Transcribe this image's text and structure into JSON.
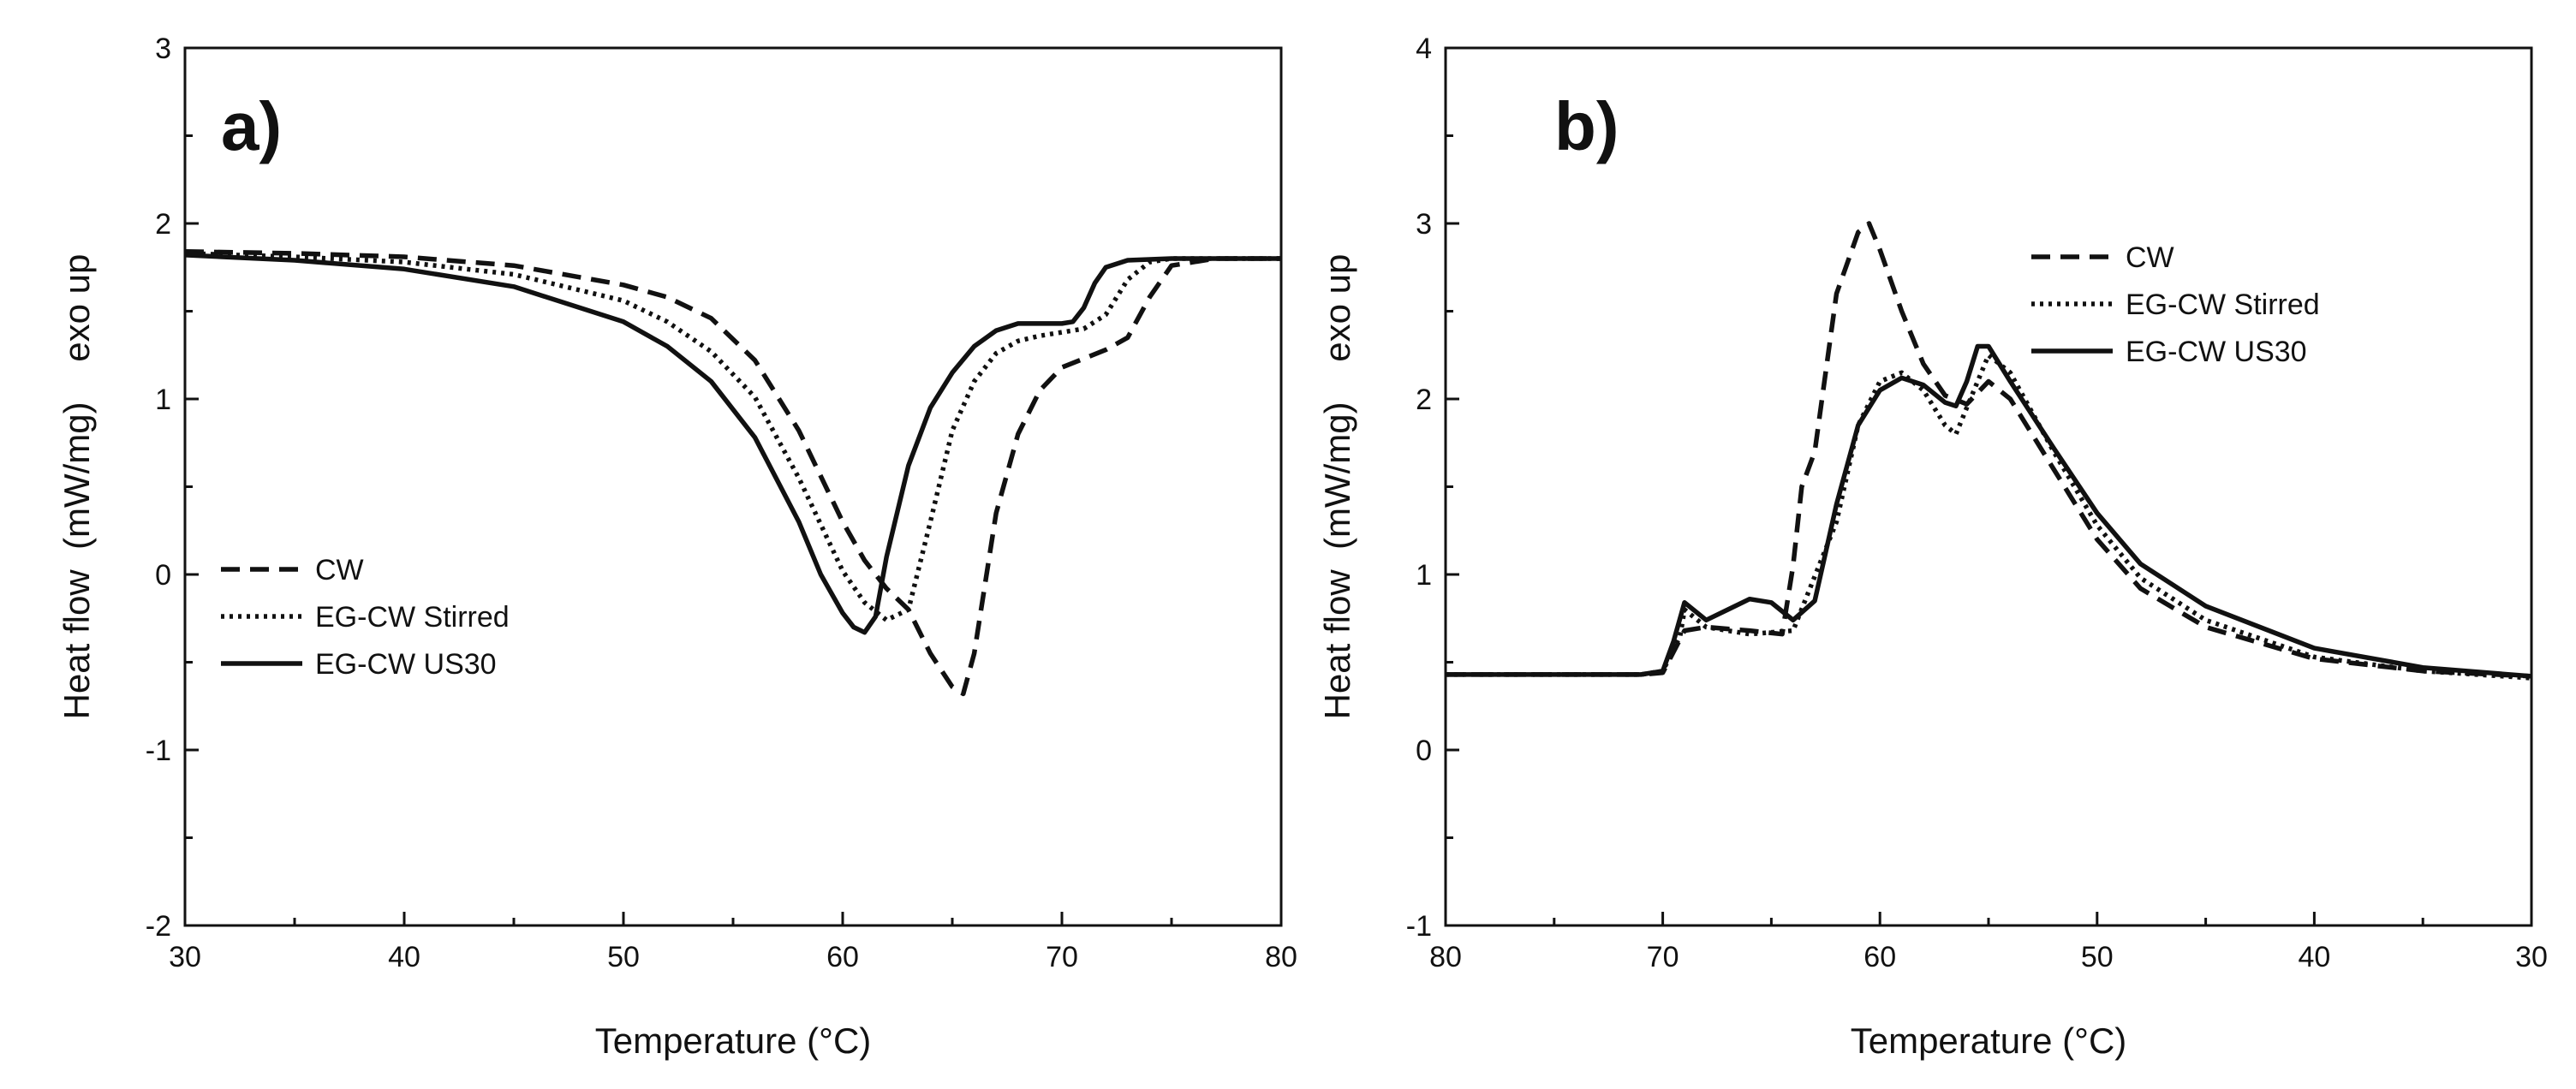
{
  "chart_data": [
    {
      "type": "line",
      "panel_label": "a)",
      "xlabel": "Temperature (°C)",
      "ylabel": "Heat flow  (mW/mg)    exo up",
      "xlim": [
        30,
        80
      ],
      "ylim": [
        -2,
        3
      ],
      "x_reversed": false,
      "xticks": [
        30,
        40,
        50,
        60,
        70,
        80
      ],
      "yticks": [
        -2,
        -1,
        0,
        1,
        2,
        3
      ],
      "legend_position": "left-middle",
      "series": [
        {
          "name": "CW",
          "style": "dashed",
          "x": [
            30,
            35,
            40,
            45,
            50,
            52,
            54,
            56,
            58,
            60,
            61,
            62,
            63,
            64,
            65,
            65.5,
            66,
            67,
            68,
            69,
            70,
            71,
            72,
            73,
            74,
            75,
            77,
            80
          ],
          "y": [
            1.84,
            1.83,
            1.81,
            1.76,
            1.65,
            1.58,
            1.46,
            1.22,
            0.82,
            0.3,
            0.08,
            -0.08,
            -0.2,
            -0.45,
            -0.64,
            -0.68,
            -0.45,
            0.35,
            0.8,
            1.05,
            1.18,
            1.23,
            1.28,
            1.35,
            1.58,
            1.76,
            1.8,
            1.8
          ]
        },
        {
          "name": "EG-CW Stirred",
          "style": "dotted",
          "x": [
            30,
            35,
            40,
            45,
            50,
            52,
            54,
            56,
            58,
            60,
            61,
            62,
            63,
            64,
            65,
            66,
            67,
            68,
            69,
            70,
            71,
            72,
            73,
            74,
            75,
            77,
            80
          ],
          "y": [
            1.83,
            1.81,
            1.78,
            1.71,
            1.56,
            1.44,
            1.27,
            1.01,
            0.55,
            0.02,
            -0.16,
            -0.26,
            -0.2,
            0.3,
            0.82,
            1.1,
            1.26,
            1.33,
            1.36,
            1.38,
            1.4,
            1.48,
            1.68,
            1.78,
            1.8,
            1.8,
            1.8
          ]
        },
        {
          "name": "EG-CW US30",
          "style": "solid",
          "x": [
            30,
            35,
            40,
            45,
            50,
            52,
            54,
            56,
            58,
            59,
            60,
            60.5,
            61,
            61.5,
            62,
            63,
            64,
            65,
            66,
            67,
            68,
            69,
            70,
            70.5,
            71,
            71.5,
            72,
            73,
            75,
            80
          ],
          "y": [
            1.82,
            1.79,
            1.74,
            1.64,
            1.44,
            1.3,
            1.1,
            0.78,
            0.3,
            0.0,
            -0.22,
            -0.3,
            -0.33,
            -0.24,
            0.1,
            0.62,
            0.95,
            1.15,
            1.3,
            1.39,
            1.43,
            1.43,
            1.43,
            1.44,
            1.52,
            1.66,
            1.75,
            1.79,
            1.8,
            1.8
          ]
        }
      ]
    },
    {
      "type": "line",
      "panel_label": "b)",
      "xlabel": "Temperature (°C)",
      "ylabel": "Heat flow  (mW/mg)    exo up",
      "xlim": [
        80,
        30
      ],
      "ylim": [
        -1,
        4
      ],
      "x_reversed": true,
      "xticks": [
        80,
        70,
        60,
        50,
        40,
        30
      ],
      "yticks": [
        -1,
        0,
        1,
        2,
        3,
        4
      ],
      "legend_position": "top-right",
      "series": [
        {
          "name": "CW",
          "style": "dashed",
          "x": [
            80,
            75,
            71,
            70,
            69,
            68,
            66,
            64.5,
            64,
            63.6,
            63,
            62,
            61,
            60.5,
            60,
            59,
            58,
            57,
            56,
            55,
            54,
            52,
            50,
            48,
            45,
            40,
            35,
            30
          ],
          "y": [
            0.43,
            0.43,
            0.43,
            0.44,
            0.68,
            0.7,
            0.68,
            0.66,
            1.05,
            1.5,
            1.7,
            2.6,
            2.95,
            3.0,
            2.85,
            2.5,
            2.2,
            2.02,
            1.97,
            2.1,
            2.0,
            1.6,
            1.2,
            0.92,
            0.7,
            0.52,
            0.45,
            0.42
          ]
        },
        {
          "name": "EG-CW Stirred",
          "style": "dotted",
          "x": [
            80,
            75,
            71,
            70,
            69.2,
            69,
            68,
            66,
            64,
            62,
            61,
            60,
            59,
            58,
            57,
            56.5,
            56,
            55,
            54,
            52,
            50,
            48,
            45,
            40,
            35,
            30
          ],
          "y": [
            0.43,
            0.43,
            0.43,
            0.45,
            0.65,
            0.8,
            0.7,
            0.66,
            0.68,
            1.3,
            1.85,
            2.1,
            2.15,
            2.05,
            1.85,
            1.8,
            1.95,
            2.25,
            2.15,
            1.7,
            1.28,
            0.98,
            0.74,
            0.53,
            0.45,
            0.41
          ]
        },
        {
          "name": "EG-CW US30",
          "style": "solid",
          "x": [
            80,
            75,
            72,
            71,
            70,
            69.5,
            69,
            68,
            67,
            66,
            65,
            64,
            63,
            62,
            61,
            60,
            59,
            58,
            57,
            56.5,
            56,
            55.5,
            55,
            54,
            52,
            50,
            48,
            45,
            40,
            35,
            30
          ],
          "y": [
            0.43,
            0.43,
            0.43,
            0.43,
            0.45,
            0.62,
            0.84,
            0.74,
            0.8,
            0.86,
            0.84,
            0.74,
            0.85,
            1.4,
            1.85,
            2.05,
            2.12,
            2.08,
            1.98,
            1.96,
            2.1,
            2.3,
            2.3,
            2.1,
            1.72,
            1.35,
            1.06,
            0.82,
            0.58,
            0.47,
            0.42
          ]
        }
      ]
    }
  ]
}
